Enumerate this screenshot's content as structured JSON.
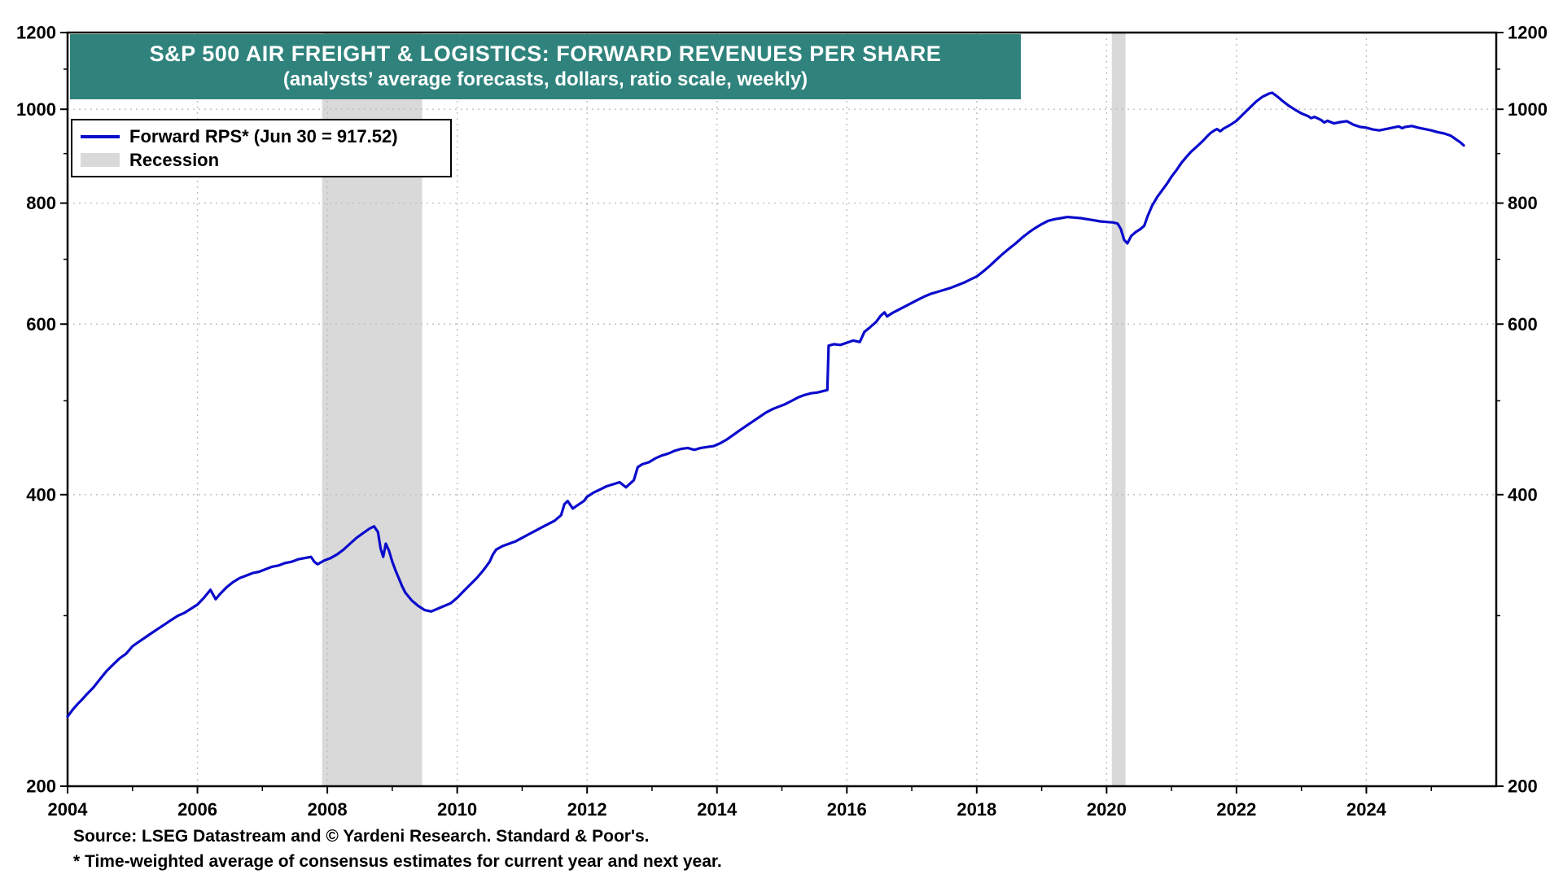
{
  "title": {
    "line1": "S&P 500 AIR FREIGHT & LOGISTICS: FORWARD REVENUES PER SHARE",
    "line2": "(analysts’ average forecasts, dollars, ratio scale, weekly)"
  },
  "legend": {
    "series_label": "Forward RPS* (Jun 30 = 917.52)",
    "recession_label": "Recession"
  },
  "footer": {
    "source": "Source: LSEG Datastream and © Yardeni Research. Standard & Poor's.",
    "note": "* Time-weighted average of consensus estimates for current year and next year."
  },
  "colors": {
    "line": "#0b0bcc",
    "recession": "#d9d9d9",
    "title_bg": "#2f837c",
    "grid": "#bfbfbf",
    "axis": "#000000"
  },
  "chart_data": {
    "type": "line",
    "scale": "log",
    "title": "S&P 500 Air Freight & Logistics: Forward Revenues Per Share",
    "ylabel": "dollars (ratio scale)",
    "xlabel": "",
    "xlim": [
      2004,
      2026
    ],
    "ylim": [
      200,
      1200
    ],
    "yticks": [
      200,
      400,
      600,
      800,
      1000,
      1200
    ],
    "yticks_minor": [
      300,
      500,
      700,
      900,
      1100
    ],
    "xticks_labeled": [
      2004,
      2006,
      2008,
      2010,
      2012,
      2014,
      2016,
      2018,
      2020,
      2022,
      2024
    ],
    "recession_bands": [
      [
        2007.92,
        2009.46
      ],
      [
        2020.08,
        2020.29
      ]
    ],
    "series": [
      {
        "name": "Forward RPS",
        "last_value": 917.52,
        "last_date": "Jun 30",
        "points": [
          [
            2004.0,
            236
          ],
          [
            2004.08,
            240
          ],
          [
            2004.15,
            243
          ],
          [
            2004.23,
            246
          ],
          [
            2004.3,
            249
          ],
          [
            2004.4,
            253
          ],
          [
            2004.5,
            258
          ],
          [
            2004.6,
            263
          ],
          [
            2004.7,
            267
          ],
          [
            2004.8,
            271
          ],
          [
            2004.9,
            274
          ],
          [
            2005.0,
            279
          ],
          [
            2005.1,
            282
          ],
          [
            2005.2,
            285
          ],
          [
            2005.3,
            288
          ],
          [
            2005.4,
            291
          ],
          [
            2005.5,
            294
          ],
          [
            2005.6,
            297
          ],
          [
            2005.7,
            300
          ],
          [
            2005.8,
            302
          ],
          [
            2005.9,
            305
          ],
          [
            2006.0,
            308
          ],
          [
            2006.1,
            313
          ],
          [
            2006.2,
            319
          ],
          [
            2006.28,
            312
          ],
          [
            2006.35,
            316
          ],
          [
            2006.45,
            321
          ],
          [
            2006.55,
            325
          ],
          [
            2006.65,
            328
          ],
          [
            2006.75,
            330
          ],
          [
            2006.85,
            332
          ],
          [
            2006.95,
            333
          ],
          [
            2007.05,
            335
          ],
          [
            2007.15,
            337
          ],
          [
            2007.25,
            338
          ],
          [
            2007.35,
            340
          ],
          [
            2007.45,
            341
          ],
          [
            2007.55,
            343
          ],
          [
            2007.65,
            344
          ],
          [
            2007.75,
            345
          ],
          [
            2007.8,
            341
          ],
          [
            2007.85,
            339
          ],
          [
            2007.95,
            342
          ],
          [
            2008.05,
            344
          ],
          [
            2008.15,
            347
          ],
          [
            2008.25,
            351
          ],
          [
            2008.35,
            356
          ],
          [
            2008.45,
            361
          ],
          [
            2008.55,
            365
          ],
          [
            2008.65,
            369
          ],
          [
            2008.72,
            371
          ],
          [
            2008.78,
            366
          ],
          [
            2008.82,
            352
          ],
          [
            2008.86,
            345
          ],
          [
            2008.9,
            356
          ],
          [
            2008.95,
            350
          ],
          [
            2009.0,
            341
          ],
          [
            2009.05,
            334
          ],
          [
            2009.1,
            328
          ],
          [
            2009.15,
            322
          ],
          [
            2009.2,
            317
          ],
          [
            2009.3,
            311
          ],
          [
            2009.4,
            307
          ],
          [
            2009.5,
            304
          ],
          [
            2009.6,
            303
          ],
          [
            2009.7,
            305
          ],
          [
            2009.8,
            307
          ],
          [
            2009.9,
            309
          ],
          [
            2010.0,
            313
          ],
          [
            2010.1,
            318
          ],
          [
            2010.2,
            323
          ],
          [
            2010.3,
            328
          ],
          [
            2010.4,
            334
          ],
          [
            2010.5,
            341
          ],
          [
            2010.55,
            347
          ],
          [
            2010.6,
            351
          ],
          [
            2010.7,
            354
          ],
          [
            2010.8,
            356
          ],
          [
            2010.9,
            358
          ],
          [
            2011.0,
            361
          ],
          [
            2011.1,
            364
          ],
          [
            2011.2,
            367
          ],
          [
            2011.3,
            370
          ],
          [
            2011.4,
            373
          ],
          [
            2011.5,
            376
          ],
          [
            2011.6,
            381
          ],
          [
            2011.65,
            391
          ],
          [
            2011.7,
            394
          ],
          [
            2011.78,
            387
          ],
          [
            2011.85,
            390
          ],
          [
            2011.95,
            394
          ],
          [
            2012.0,
            398
          ],
          [
            2012.1,
            402
          ],
          [
            2012.2,
            405
          ],
          [
            2012.3,
            408
          ],
          [
            2012.4,
            410
          ],
          [
            2012.5,
            412
          ],
          [
            2012.6,
            407
          ],
          [
            2012.65,
            410
          ],
          [
            2012.72,
            414
          ],
          [
            2012.78,
            427
          ],
          [
            2012.85,
            430
          ],
          [
            2012.95,
            432
          ],
          [
            2013.05,
            436
          ],
          [
            2013.15,
            439
          ],
          [
            2013.25,
            441
          ],
          [
            2013.35,
            444
          ],
          [
            2013.45,
            446
          ],
          [
            2013.55,
            447
          ],
          [
            2013.65,
            445
          ],
          [
            2013.75,
            447
          ],
          [
            2013.85,
            448
          ],
          [
            2013.95,
            449
          ],
          [
            2014.05,
            452
          ],
          [
            2014.15,
            456
          ],
          [
            2014.25,
            461
          ],
          [
            2014.35,
            466
          ],
          [
            2014.45,
            471
          ],
          [
            2014.55,
            476
          ],
          [
            2014.65,
            481
          ],
          [
            2014.75,
            486
          ],
          [
            2014.85,
            490
          ],
          [
            2014.95,
            493
          ],
          [
            2015.05,
            496
          ],
          [
            2015.15,
            500
          ],
          [
            2015.25,
            504
          ],
          [
            2015.35,
            507
          ],
          [
            2015.45,
            509
          ],
          [
            2015.55,
            510
          ],
          [
            2015.65,
            512
          ],
          [
            2015.7,
            513
          ],
          [
            2015.72,
            570
          ],
          [
            2015.8,
            572
          ],
          [
            2015.9,
            571
          ],
          [
            2016.0,
            574
          ],
          [
            2016.1,
            577
          ],
          [
            2016.2,
            575
          ],
          [
            2016.27,
            589
          ],
          [
            2016.35,
            595
          ],
          [
            2016.45,
            603
          ],
          [
            2016.52,
            612
          ],
          [
            2016.58,
            617
          ],
          [
            2016.62,
            611
          ],
          [
            2016.7,
            616
          ],
          [
            2016.8,
            621
          ],
          [
            2016.9,
            626
          ],
          [
            2017.0,
            631
          ],
          [
            2017.1,
            636
          ],
          [
            2017.2,
            641
          ],
          [
            2017.3,
            645
          ],
          [
            2017.4,
            648
          ],
          [
            2017.5,
            651
          ],
          [
            2017.6,
            654
          ],
          [
            2017.7,
            658
          ],
          [
            2017.8,
            662
          ],
          [
            2017.9,
            667
          ],
          [
            2018.0,
            672
          ],
          [
            2018.1,
            680
          ],
          [
            2018.2,
            689
          ],
          [
            2018.3,
            699
          ],
          [
            2018.4,
            709
          ],
          [
            2018.5,
            718
          ],
          [
            2018.6,
            727
          ],
          [
            2018.7,
            737
          ],
          [
            2018.8,
            746
          ],
          [
            2018.9,
            754
          ],
          [
            2019.0,
            761
          ],
          [
            2019.1,
            767
          ],
          [
            2019.2,
            770
          ],
          [
            2019.3,
            772
          ],
          [
            2019.4,
            774
          ],
          [
            2019.5,
            773
          ],
          [
            2019.6,
            772
          ],
          [
            2019.7,
            770
          ],
          [
            2019.8,
            768
          ],
          [
            2019.9,
            766
          ],
          [
            2020.0,
            765
          ],
          [
            2020.1,
            764
          ],
          [
            2020.17,
            762
          ],
          [
            2020.22,
            752
          ],
          [
            2020.27,
            733
          ],
          [
            2020.32,
            727
          ],
          [
            2020.38,
            740
          ],
          [
            2020.45,
            747
          ],
          [
            2020.52,
            752
          ],
          [
            2020.58,
            758
          ],
          [
            2020.63,
            775
          ],
          [
            2020.7,
            795
          ],
          [
            2020.78,
            812
          ],
          [
            2020.85,
            824
          ],
          [
            2020.93,
            838
          ],
          [
            2021.0,
            852
          ],
          [
            2021.08,
            866
          ],
          [
            2021.15,
            880
          ],
          [
            2021.23,
            893
          ],
          [
            2021.3,
            904
          ],
          [
            2021.38,
            914
          ],
          [
            2021.45,
            923
          ],
          [
            2021.5,
            930
          ],
          [
            2021.55,
            938
          ],
          [
            2021.6,
            945
          ],
          [
            2021.65,
            950
          ],
          [
            2021.7,
            954
          ],
          [
            2021.75,
            949
          ],
          [
            2021.8,
            955
          ],
          [
            2021.85,
            959
          ],
          [
            2021.9,
            963
          ],
          [
            2022.0,
            973
          ],
          [
            2022.1,
            988
          ],
          [
            2022.2,
            1003
          ],
          [
            2022.3,
            1018
          ],
          [
            2022.4,
            1030
          ],
          [
            2022.5,
            1038
          ],
          [
            2022.55,
            1040
          ],
          [
            2022.6,
            1034
          ],
          [
            2022.65,
            1028
          ],
          [
            2022.7,
            1021
          ],
          [
            2022.8,
            1009
          ],
          [
            2022.9,
            999
          ],
          [
            2023.0,
            990
          ],
          [
            2023.1,
            984
          ],
          [
            2023.15,
            979
          ],
          [
            2023.2,
            982
          ],
          [
            2023.3,
            975
          ],
          [
            2023.35,
            969
          ],
          [
            2023.4,
            973
          ],
          [
            2023.5,
            967
          ],
          [
            2023.6,
            970
          ],
          [
            2023.7,
            972
          ],
          [
            2023.8,
            964
          ],
          [
            2023.9,
            959
          ],
          [
            2024.0,
            957
          ],
          [
            2024.1,
            953
          ],
          [
            2024.2,
            951
          ],
          [
            2024.3,
            954
          ],
          [
            2024.4,
            957
          ],
          [
            2024.5,
            960
          ],
          [
            2024.55,
            956
          ],
          [
            2024.6,
            959
          ],
          [
            2024.7,
            961
          ],
          [
            2024.8,
            957
          ],
          [
            2024.9,
            954
          ],
          [
            2025.0,
            951
          ],
          [
            2025.1,
            947
          ],
          [
            2025.2,
            944
          ],
          [
            2025.3,
            939
          ],
          [
            2025.35,
            934
          ],
          [
            2025.4,
            929
          ],
          [
            2025.45,
            924
          ],
          [
            2025.5,
            917.52
          ]
        ]
      }
    ]
  }
}
